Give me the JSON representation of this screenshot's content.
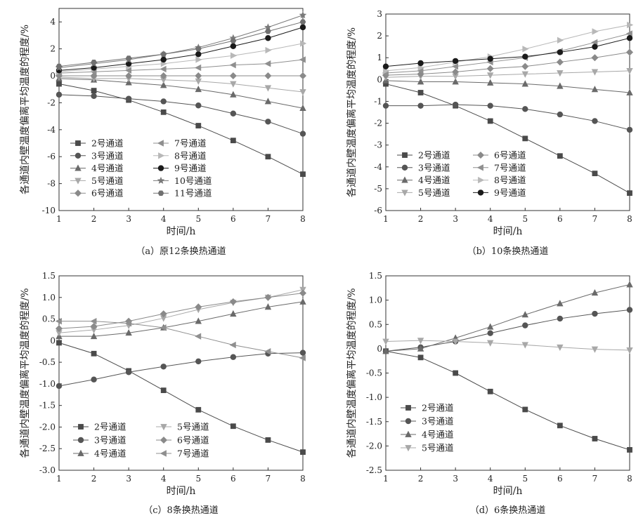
{
  "chart_data": [
    {
      "type": "line",
      "caption": "（a）原12条换热通道",
      "xlabel": "时间/h",
      "ylabel": "各通道内壁温度偏离平均温度的程度/%",
      "x": [
        1,
        2,
        3,
        4,
        5,
        6,
        7,
        8
      ],
      "xlim": [
        1,
        8
      ],
      "ylim": [
        -10,
        5
      ],
      "yticks": [
        -10,
        -8,
        -6,
        -4,
        -2,
        0,
        2,
        4
      ],
      "legend_columns": 2,
      "legend_position": "bottom-left",
      "series": [
        {
          "name": "2号通道",
          "marker": "square",
          "color": "#4a4a4a",
          "values": [
            -0.6,
            -1.1,
            -1.8,
            -2.7,
            -3.7,
            -4.8,
            -6.0,
            -7.3
          ]
        },
        {
          "name": "3号通道",
          "marker": "circle",
          "color": "#555555",
          "values": [
            -1.4,
            -1.5,
            -1.7,
            -1.9,
            -2.2,
            -2.8,
            -3.4,
            -4.3
          ]
        },
        {
          "name": "4号通道",
          "marker": "triangle-up",
          "color": "#6a6a6a",
          "values": [
            -0.2,
            -0.3,
            -0.5,
            -0.7,
            -1.0,
            -1.4,
            -1.9,
            -2.4
          ]
        },
        {
          "name": "5号通道",
          "marker": "triangle-down",
          "color": "#a8a8a8",
          "values": [
            -0.1,
            -0.2,
            -0.2,
            -0.3,
            -0.4,
            -0.6,
            -0.9,
            -1.2
          ]
        },
        {
          "name": "6号通道",
          "marker": "diamond",
          "color": "#8a8a8a",
          "values": [
            0.0,
            0.0,
            0.0,
            0.0,
            0.0,
            0.0,
            0.0,
            0.0
          ]
        },
        {
          "name": "7号通道",
          "marker": "triangle-left",
          "color": "#8f8f8f",
          "values": [
            0.2,
            0.3,
            0.4,
            0.5,
            0.6,
            0.8,
            0.9,
            1.2
          ]
        },
        {
          "name": "8号通道",
          "marker": "triangle-right",
          "color": "#b8b8b8",
          "values": [
            0.3,
            0.5,
            0.7,
            0.9,
            1.2,
            1.5,
            1.9,
            2.4
          ]
        },
        {
          "name": "9号通道",
          "marker": "circle",
          "color": "#1a1a1a",
          "values": [
            0.4,
            0.6,
            0.9,
            1.2,
            1.6,
            2.2,
            2.8,
            3.6
          ]
        },
        {
          "name": "10号通道",
          "marker": "star",
          "color": "#7a7a7a",
          "values": [
            0.6,
            0.9,
            1.2,
            1.6,
            2.1,
            2.8,
            3.6,
            4.5
          ]
        },
        {
          "name": "11号通道",
          "marker": "hexagon",
          "color": "#707070",
          "values": [
            0.7,
            1.0,
            1.3,
            1.6,
            2.0,
            2.6,
            3.3,
            4.0
          ]
        }
      ]
    },
    {
      "type": "line",
      "caption": "（b）10条换热通道",
      "xlabel": "时间/h",
      "ylabel": "各通道内壁温度偏离平均温度的程度/%",
      "x": [
        1,
        2,
        3,
        4,
        5,
        6,
        7,
        8
      ],
      "xlim": [
        1,
        8
      ],
      "ylim": [
        -6,
        3
      ],
      "yticks": [
        -6,
        -5,
        -4,
        -3,
        -2,
        -1,
        0,
        1,
        2,
        3
      ],
      "legend_columns": 2,
      "legend_position": "bottom-left",
      "series": [
        {
          "name": "2号通道",
          "marker": "square",
          "color": "#4a4a4a",
          "values": [
            -0.2,
            -0.6,
            -1.2,
            -1.9,
            -2.7,
            -3.5,
            -4.3,
            -5.2
          ]
        },
        {
          "name": "3号通道",
          "marker": "circle",
          "color": "#555555",
          "values": [
            -1.2,
            -1.2,
            -1.15,
            -1.2,
            -1.35,
            -1.6,
            -1.9,
            -2.3
          ]
        },
        {
          "name": "4号通道",
          "marker": "triangle-up",
          "color": "#6a6a6a",
          "values": [
            -0.05,
            -0.1,
            -0.1,
            -0.15,
            -0.2,
            -0.3,
            -0.45,
            -0.6
          ]
        },
        {
          "name": "5号通道",
          "marker": "triangle-down",
          "color": "#a8a8a8",
          "values": [
            0.1,
            0.15,
            0.15,
            0.2,
            0.25,
            0.3,
            0.35,
            0.4
          ]
        },
        {
          "name": "6号通道",
          "marker": "diamond",
          "color": "#8a8a8a",
          "values": [
            0.2,
            0.25,
            0.35,
            0.5,
            0.6,
            0.8,
            1.0,
            1.25
          ]
        },
        {
          "name": "7号通道",
          "marker": "triangle-left",
          "color": "#8f8f8f",
          "values": [
            0.3,
            0.4,
            0.6,
            0.8,
            1.0,
            1.3,
            1.7,
            2.1
          ]
        },
        {
          "name": "8号通道",
          "marker": "triangle-right",
          "color": "#b8b8b8",
          "values": [
            0.4,
            0.55,
            0.8,
            1.05,
            1.4,
            1.8,
            2.2,
            2.5
          ]
        },
        {
          "name": "9号通道",
          "marker": "circle",
          "color": "#1a1a1a",
          "values": [
            0.6,
            0.75,
            0.85,
            0.95,
            1.05,
            1.25,
            1.5,
            1.9
          ]
        }
      ]
    },
    {
      "type": "line",
      "caption": "（c）8条换热通道",
      "xlabel": "时间/h",
      "ylabel": "各通道内壁温度偏离平均温度的程度/%",
      "x": [
        1,
        2,
        3,
        4,
        5,
        6,
        7,
        8
      ],
      "xlim": [
        1,
        8
      ],
      "ylim": [
        -3,
        1.5
      ],
      "yticks": [
        -3.0,
        -2.5,
        -2.0,
        -1.5,
        -1.0,
        -0.5,
        0,
        0.5,
        1.0,
        1.5
      ],
      "legend_columns": 2,
      "legend_position": "bottom-left",
      "series": [
        {
          "name": "2号通道",
          "marker": "square",
          "color": "#4a4a4a",
          "values": [
            -0.05,
            -0.3,
            -0.7,
            -1.15,
            -1.6,
            -1.98,
            -2.3,
            -2.58
          ]
        },
        {
          "name": "3号通道",
          "marker": "circle",
          "color": "#555555",
          "values": [
            -1.05,
            -0.9,
            -0.73,
            -0.6,
            -0.48,
            -0.38,
            -0.3,
            -0.28
          ]
        },
        {
          "name": "4号通道",
          "marker": "triangle-up",
          "color": "#6a6a6a",
          "values": [
            0.1,
            0.1,
            0.18,
            0.3,
            0.45,
            0.62,
            0.78,
            0.9
          ]
        },
        {
          "name": "5号通道",
          "marker": "triangle-down",
          "color": "#a8a8a8",
          "values": [
            0.18,
            0.25,
            0.35,
            0.52,
            0.72,
            0.88,
            1.0,
            1.18
          ]
        },
        {
          "name": "6号通道",
          "marker": "diamond",
          "color": "#8a8a8a",
          "values": [
            0.28,
            0.33,
            0.45,
            0.62,
            0.78,
            0.9,
            1.0,
            1.1
          ]
        },
        {
          "name": "7号通道",
          "marker": "triangle-left",
          "color": "#8f8f8f",
          "values": [
            0.45,
            0.45,
            0.4,
            0.3,
            0.1,
            -0.1,
            -0.25,
            -0.4
          ]
        }
      ]
    },
    {
      "type": "line",
      "caption": "（d）6条换热通道",
      "xlabel": "时间/h",
      "ylabel": "各通道内壁温度偏离平均温度的程度/%",
      "x": [
        1,
        2,
        3,
        4,
        5,
        6,
        7,
        8
      ],
      "xlim": [
        1,
        8
      ],
      "ylim": [
        -2.5,
        1.5
      ],
      "yticks": [
        -2.5,
        -2.0,
        -1.5,
        -1.0,
        -0.5,
        0,
        0.5,
        1.0,
        1.5
      ],
      "legend_columns": 1,
      "legend_position": "bottom-left",
      "series": [
        {
          "name": "2号通道",
          "marker": "square",
          "color": "#4a4a4a",
          "values": [
            -0.05,
            -0.18,
            -0.5,
            -0.88,
            -1.25,
            -1.58,
            -1.85,
            -2.08
          ]
        },
        {
          "name": "3号通道",
          "marker": "circle",
          "color": "#555555",
          "values": [
            -0.05,
            0.03,
            0.15,
            0.32,
            0.48,
            0.62,
            0.72,
            0.8
          ]
        },
        {
          "name": "4号通道",
          "marker": "triangle-up",
          "color": "#6a6a6a",
          "values": [
            -0.05,
            0.0,
            0.22,
            0.45,
            0.7,
            0.93,
            1.15,
            1.32
          ]
        },
        {
          "name": "5号通道",
          "marker": "triangle-down",
          "color": "#a8a8a8",
          "values": [
            0.15,
            0.17,
            0.15,
            0.12,
            0.08,
            0.03,
            -0.01,
            -0.03
          ]
        }
      ]
    }
  ]
}
